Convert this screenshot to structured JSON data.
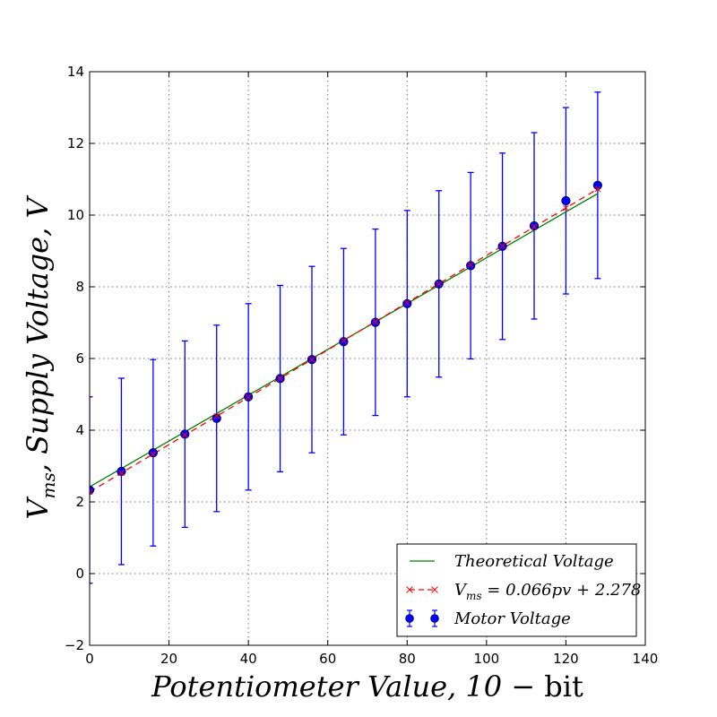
{
  "chart_data": {
    "type": "scatter",
    "xlabel": "Potentiometer Value,  10 − bit",
    "ylabel": "V_ms,  Supply Voltage,  V",
    "xlim": [
      0,
      140
    ],
    "ylim": [
      -2,
      14
    ],
    "x_ticks": [
      "0",
      "20",
      "40",
      "60",
      "80",
      "100",
      "120",
      "140"
    ],
    "y_ticks": [
      "−2",
      "0",
      "2",
      "4",
      "6",
      "8",
      "10",
      "12",
      "14"
    ],
    "grid": true,
    "legend_position": "lower-right",
    "series": [
      {
        "name": "Theoretical Voltage",
        "kind": "line",
        "color": "#008000",
        "x": [
          0,
          128
        ],
        "y": [
          2.42,
          10.6
        ]
      },
      {
        "name": "V_ms = 0.066pv + 2.278",
        "kind": "dashed-line",
        "color": "#ff0000",
        "x": [
          0,
          8,
          16,
          24,
          32,
          40,
          48,
          56,
          64,
          72,
          80,
          88,
          96,
          104,
          112,
          120,
          128
        ],
        "y": [
          2.278,
          2.806,
          3.334,
          3.862,
          4.39,
          4.918,
          5.446,
          5.974,
          6.502,
          7.03,
          7.558,
          8.086,
          8.614,
          9.142,
          9.67,
          10.198,
          10.726
        ]
      },
      {
        "name": "Motor Voltage",
        "kind": "errorbar",
        "color": "#0000ff",
        "x": [
          0,
          8,
          16,
          24,
          32,
          40,
          48,
          56,
          64,
          72,
          80,
          88,
          96,
          104,
          112,
          120,
          128
        ],
        "y": [
          2.33,
          2.85,
          3.37,
          3.89,
          4.33,
          4.93,
          5.44,
          5.97,
          6.47,
          7.01,
          7.53,
          8.08,
          8.59,
          9.13,
          9.7,
          10.4,
          10.83
        ],
        "yerr": [
          2.6,
          2.6,
          2.6,
          2.6,
          2.6,
          2.6,
          2.6,
          2.6,
          2.6,
          2.6,
          2.6,
          2.6,
          2.6,
          2.6,
          2.6,
          2.6,
          2.6
        ]
      }
    ]
  },
  "legend": {
    "items": [
      {
        "label_parts": [
          "Theoretical Voltage"
        ]
      },
      {
        "label_parts": [
          "V",
          "ms",
          " = 0.066pv + 2.278"
        ]
      },
      {
        "label_parts": [
          "Motor Voltage"
        ]
      }
    ]
  },
  "axes": {
    "xlabel_main": "Potentiometer Value,  10",
    "xlabel_suffix": " − bit",
    "ylabel_v": "V",
    "ylabel_sub": "ms",
    "ylabel_rest": ",  Supply Voltage,  V"
  }
}
